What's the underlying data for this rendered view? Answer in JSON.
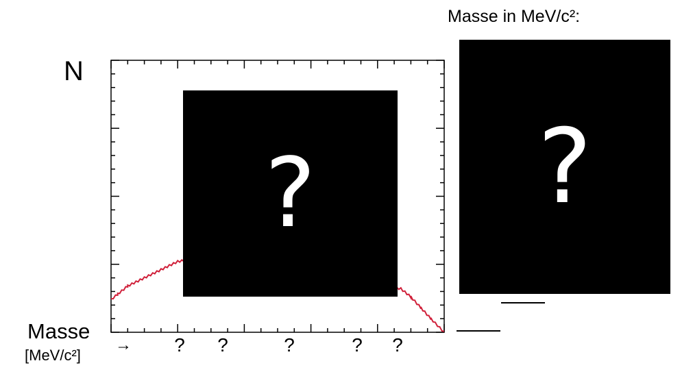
{
  "plot": {
    "y_axis_label": "N",
    "x_axis_label": "Masse",
    "x_axis_unit": "[MeV/c²]",
    "x_axis_arrow": "→",
    "tick_labels": [
      "?",
      "?",
      "?",
      "?",
      "?"
    ],
    "curve_color": "#d0203a"
  },
  "hidden_plot_area": {
    "symbol": "?"
  },
  "answer_panel": {
    "title": "Masse in MeV/c²:",
    "symbol": "?"
  },
  "chart_data": {
    "type": "line",
    "xlabel": "Masse",
    "ylabel": "N",
    "x_tick_labels": [
      "?",
      "?",
      "?",
      "?",
      "?"
    ],
    "series": [
      {
        "x": [
          0,
          0.02,
          0.05,
          0.1,
          0.15,
          0.2,
          0.25,
          0.87,
          0.9,
          0.93,
          0.96,
          1.0
        ],
        "y": [
          0.12,
          0.14,
          0.17,
          0.2,
          0.23,
          0.26,
          0.27,
          0.16,
          0.13,
          0.09,
          0.05,
          0.0
        ]
      }
    ],
    "ylim": [
      0,
      1
    ],
    "grid": false
  }
}
